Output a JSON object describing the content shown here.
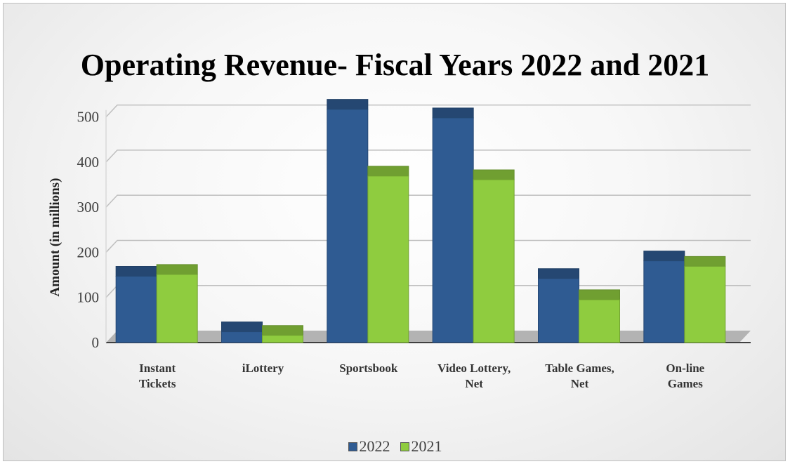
{
  "chart_data": {
    "type": "bar",
    "title": "Operating Revenue- Fiscal Years 2022 and 2021",
    "xlabel": "",
    "ylabel": "Amount (in millions)",
    "categories": [
      [
        "Instant",
        "Tickets"
      ],
      [
        "iLottery"
      ],
      [
        "Sportsbook"
      ],
      [
        "Video Lottery,",
        "Net"
      ],
      [
        "Table Games,",
        "Net"
      ],
      [
        "On-line",
        "Games"
      ]
    ],
    "series": [
      {
        "name": "2022",
        "color": "#2f5b92",
        "values": [
          147,
          24,
          517,
          498,
          142,
          181
        ]
      },
      {
        "name": "2021",
        "color": "#8fcc3f",
        "values": [
          151,
          16,
          369,
          361,
          95,
          169
        ]
      }
    ],
    "ylim": [
      0,
      500
    ],
    "yticks": [
      0,
      100,
      200,
      300,
      400,
      500
    ],
    "grid": true,
    "style": "3d-clustered-column",
    "legend_position": "bottom"
  }
}
